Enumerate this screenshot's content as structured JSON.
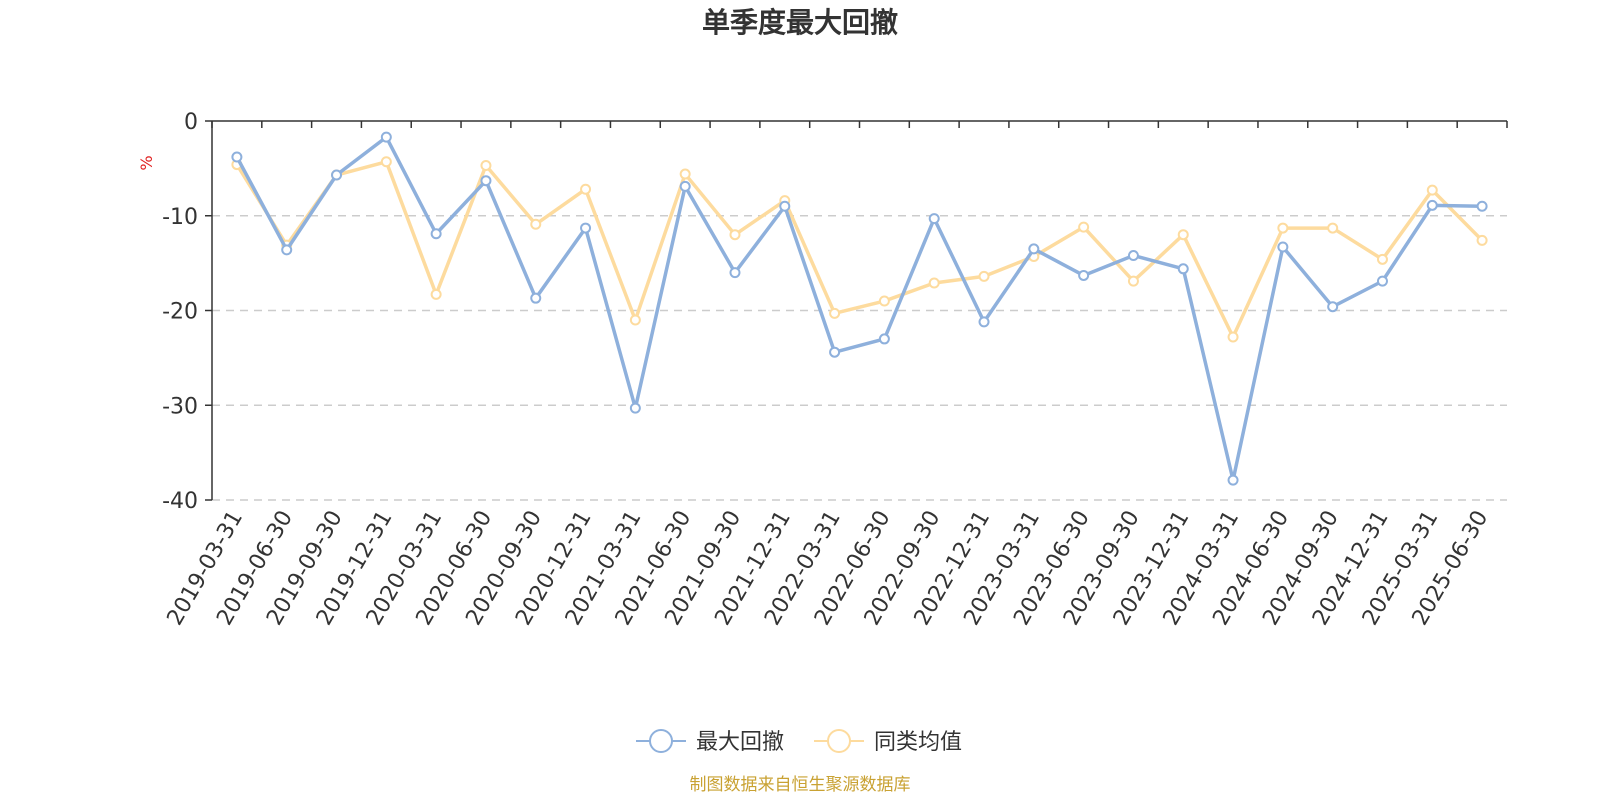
{
  "chart_data": {
    "type": "line",
    "title": "单季度最大回撤",
    "ylabel": "%",
    "ylim": [
      -40,
      0
    ],
    "yticks": [
      0,
      -10,
      -20,
      -30,
      -40
    ],
    "grid": true,
    "legend_position": "bottom",
    "categories": [
      "2019-03-31",
      "2019-06-30",
      "2019-09-30",
      "2019-12-31",
      "2020-03-31",
      "2020-06-30",
      "2020-09-30",
      "2020-12-31",
      "2021-03-31",
      "2021-06-30",
      "2021-09-30",
      "2021-12-31",
      "2022-03-31",
      "2022-06-30",
      "2022-09-30",
      "2022-12-31",
      "2023-03-31",
      "2023-06-30",
      "2023-09-30",
      "2023-12-31",
      "2024-03-31",
      "2024-06-30",
      "2024-09-30",
      "2024-12-31",
      "2025-03-31",
      "2025-06-30"
    ],
    "series": [
      {
        "name": "最大回撤",
        "color": "#8eb0dc",
        "values": [
          -3.8,
          -13.6,
          -5.7,
          -1.7,
          -11.9,
          -6.3,
          -18.7,
          -11.3,
          -30.3,
          -6.9,
          -16.0,
          -9.0,
          -24.4,
          -23.0,
          -10.3,
          -21.2,
          -13.5,
          -16.3,
          -14.2,
          -15.6,
          -37.9,
          -13.3,
          -19.6,
          -16.9,
          -8.9,
          -9.0
        ]
      },
      {
        "name": "同类均值",
        "color": "#fddb9e",
        "values": [
          -4.6,
          -13.1,
          -5.7,
          -4.3,
          -18.3,
          -4.7,
          -10.9,
          -7.2,
          -21.0,
          -5.6,
          -12.0,
          -8.4,
          -20.3,
          -19.0,
          -17.1,
          -16.4,
          -14.3,
          -11.2,
          -16.9,
          -12.0,
          -22.8,
          -11.3,
          -11.3,
          -14.6,
          -7.3,
          -12.6
        ]
      }
    ]
  },
  "source_text": "制图数据来自恒生聚源数据库"
}
